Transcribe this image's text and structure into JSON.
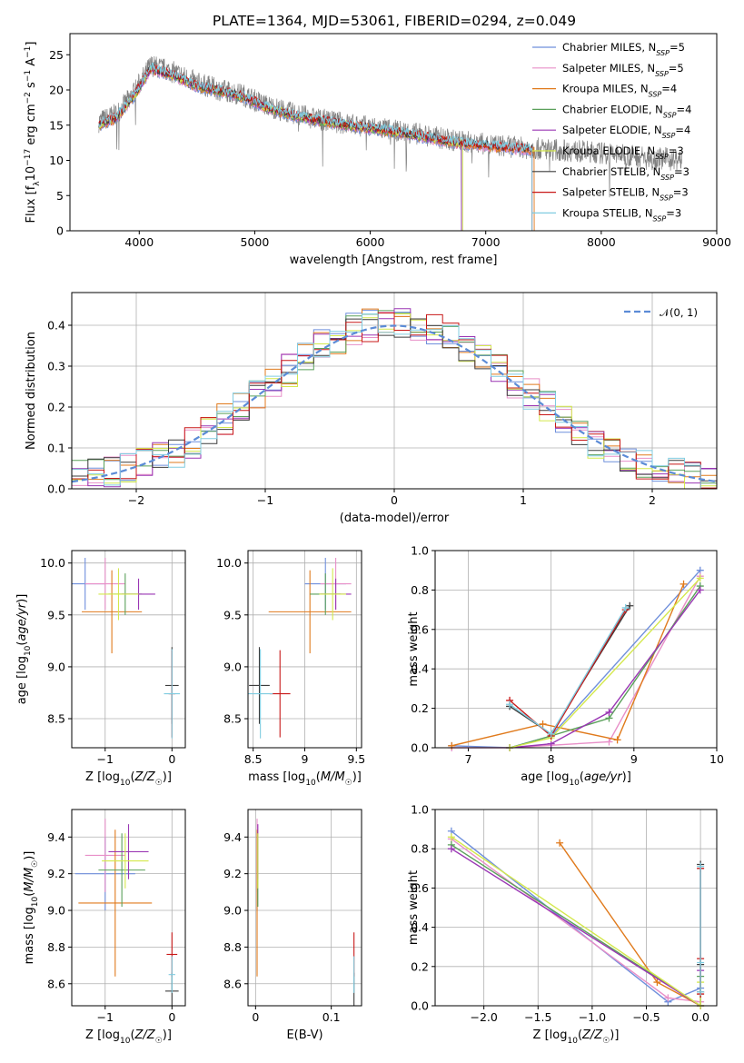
{
  "page_title": "PLATE=1364, MJD=53061, FIBERID=0294, z=0.049",
  "colors": {
    "chabrier_miles": "#6f8fdc",
    "salpeter_miles": "#e88fc8",
    "kroupa_miles": "#e07a1c",
    "chabrier_elodie": "#5aa05a",
    "salpeter_elodie": "#9a36b4",
    "kroupa_elodie": "#d4e84c",
    "chabrier_stelib": "#3c3c3c",
    "salpeter_stelib": "#c81818",
    "kroupa_stelib": "#80cce0",
    "data": "#808080",
    "gaussian": "#5b8bd6"
  },
  "legend_spectrum": [
    {
      "key": "chabrier_miles",
      "label": "Chabrier MILES, N",
      "sub": "SSP",
      "tail": "=5"
    },
    {
      "key": "salpeter_miles",
      "label": "Salpeter MILES, N",
      "sub": "SSP",
      "tail": "=5"
    },
    {
      "key": "kroupa_miles",
      "label": "Kroupa MILES, N",
      "sub": "SSP",
      "tail": "=4"
    },
    {
      "key": "chabrier_elodie",
      "label": "Chabrier ELODIE, N",
      "sub": "SSP",
      "tail": "=4"
    },
    {
      "key": "salpeter_elodie",
      "label": "Salpeter ELODIE, N",
      "sub": "SSP",
      "tail": "=4"
    },
    {
      "key": "kroupa_elodie",
      "label": "Kroupa ELODIE, N",
      "sub": "SSP",
      "tail": "=3"
    },
    {
      "key": "chabrier_stelib",
      "label": "Chabrier STELIB, N",
      "sub": "SSP",
      "tail": "=3"
    },
    {
      "key": "salpeter_stelib",
      "label": "Salpeter STELIB, N",
      "sub": "SSP",
      "tail": "=3"
    },
    {
      "key": "kroupa_stelib",
      "label": "Kroupa STELIB, N",
      "sub": "SSP",
      "tail": "=3"
    }
  ],
  "legend_hist": {
    "label": "𝒩(0, 1)"
  },
  "chart_data": [
    {
      "id": "spectrum",
      "type": "line",
      "xlabel": "wavelength [Angstrom, rest frame]",
      "ylabel": "Flux [f_λ10^-17 erg cm^-2 s^-1 A^-1]",
      "xlim": [
        3400,
        9000
      ],
      "ylim": [
        0,
        28
      ],
      "xticks": [
        4000,
        5000,
        6000,
        7000,
        8000,
        9000
      ],
      "yticks": [
        0,
        5,
        10,
        15,
        20,
        25
      ],
      "grid": false,
      "legend": "upper right",
      "data_series": {
        "x": [
          3650,
          3800,
          3950,
          4100,
          4300,
          4500,
          4700,
          4900,
          5100,
          5300,
          5500,
          5800,
          6100,
          6400,
          6700,
          7000,
          7300,
          7600,
          7900,
          8200,
          8500,
          8700
        ],
        "y": [
          15.5,
          16.5,
          19.5,
          23.5,
          22.5,
          21.0,
          20.0,
          19.3,
          17.8,
          16.8,
          16.0,
          15.2,
          14.5,
          13.8,
          12.9,
          12.3,
          11.8,
          11.5,
          11.2,
          10.7,
          10.3,
          10.0
        ]
      },
      "model_series": {
        "x": [
          3650,
          3800,
          3950,
          4100,
          4300,
          4500,
          4700,
          4900,
          5100,
          5300,
          5500,
          5800,
          6100,
          6400,
          6700,
          7000,
          7300,
          7400
        ],
        "y": [
          15.0,
          16.0,
          19.0,
          23.0,
          22.0,
          20.5,
          19.8,
          19.0,
          17.5,
          16.5,
          15.8,
          15.0,
          14.3,
          13.5,
          12.6,
          12.0,
          11.6,
          11.5
        ]
      },
      "model_end": {
        "chabrier_miles": 7400,
        "salpeter_miles": 7400,
        "kroupa_miles": 7420,
        "chabrier_elodie": 6790,
        "salpeter_elodie": 6790,
        "kroupa_elodie": 6800,
        "chabrier_stelib": 7400,
        "salpeter_stelib": 7400,
        "kroupa_stelib": 7400
      }
    },
    {
      "id": "residual_hist",
      "type": "histogram",
      "xlabel": "(data-model)/error",
      "ylabel": "Normed distribution",
      "xlim": [
        -2.5,
        2.5
      ],
      "ylim": [
        0,
        0.48
      ],
      "xticks": [
        -2,
        -1,
        0,
        1,
        2
      ],
      "yticks": [
        0.0,
        0.1,
        0.2,
        0.3,
        0.4
      ],
      "grid": true,
      "legend": "upper right",
      "bin_edges_range": [
        -2.5,
        2.5
      ],
      "n_bins": 40,
      "profile": [
        0.03,
        0.035,
        0.04,
        0.05,
        0.06,
        0.075,
        0.09,
        0.11,
        0.14,
        0.17,
        0.2,
        0.23,
        0.26,
        0.29,
        0.32,
        0.35,
        0.37,
        0.39,
        0.4,
        0.4,
        0.41,
        0.4,
        0.39,
        0.37,
        0.35,
        0.32,
        0.29,
        0.26,
        0.23,
        0.2,
        0.17,
        0.14,
        0.11,
        0.09,
        0.075,
        0.06,
        0.05,
        0.04,
        0.035,
        0.025
      ],
      "gaussian": {
        "mu": 0,
        "sigma": 1
      }
    },
    {
      "id": "age_vs_z",
      "type": "errorbar",
      "xlabel": "Z [log10(Z/Z☉)]",
      "ylabel": "age  [log10(age/yr)]",
      "xlim": [
        -1.5,
        0.2
      ],
      "ylim": [
        8.22,
        10.12
      ],
      "xticks": [
        -1,
        0
      ],
      "yticks": [
        8.5,
        9.0,
        9.5,
        10.0
      ],
      "grid": true,
      "points": [
        {
          "key": "chabrier_miles",
          "x": -1.3,
          "xerr": 0.3,
          "y": 9.8,
          "yerr": 0.25
        },
        {
          "key": "salpeter_miles",
          "x": -1.0,
          "xerr": 0.3,
          "y": 9.8,
          "yerr": 0.25
        },
        {
          "key": "kroupa_miles",
          "x": -0.9,
          "xerr": 0.45,
          "y": 9.53,
          "yerr": 0.4
        },
        {
          "key": "chabrier_elodie",
          "x": -0.7,
          "xerr": 0.25,
          "y": 9.7,
          "yerr": 0.2
        },
        {
          "key": "salpeter_elodie",
          "x": -0.5,
          "xerr": 0.25,
          "y": 9.7,
          "yerr": 0.15
        },
        {
          "key": "kroupa_elodie",
          "x": -0.8,
          "xerr": 0.3,
          "y": 9.7,
          "yerr": 0.25
        },
        {
          "key": "chabrier_stelib",
          "x": 0.0,
          "xerr": 0.1,
          "y": 8.82,
          "yerr": 0.37
        },
        {
          "key": "salpeter_stelib",
          "x": 0.0,
          "xerr": 0.05,
          "y": 8.74,
          "yerr": 0.42
        },
        {
          "key": "kroupa_stelib",
          "x": 0.0,
          "xerr": 0.12,
          "y": 8.74,
          "yerr": 0.43
        }
      ]
    },
    {
      "id": "age_vs_mass",
      "type": "errorbar",
      "xlabel": "mass [log10(M/M☉)]",
      "ylabel": "",
      "xlim": [
        8.45,
        9.55
      ],
      "ylim": [
        8.22,
        10.12
      ],
      "xticks": [
        8.5,
        9.0,
        9.5
      ],
      "yticks": [
        8.5,
        9.0,
        9.5,
        10.0
      ],
      "grid": true,
      "points": [
        {
          "key": "chabrier_miles",
          "x": 9.2,
          "xerr": 0.2,
          "y": 9.8,
          "yerr": 0.25
        },
        {
          "key": "salpeter_miles",
          "x": 9.3,
          "xerr": 0.15,
          "y": 9.8,
          "yerr": 0.25
        },
        {
          "key": "kroupa_miles",
          "x": 9.05,
          "xerr": 0.4,
          "y": 9.53,
          "yerr": 0.4
        },
        {
          "key": "chabrier_elodie",
          "x": 9.2,
          "xerr": 0.15,
          "y": 9.7,
          "yerr": 0.2
        },
        {
          "key": "salpeter_elodie",
          "x": 9.3,
          "xerr": 0.15,
          "y": 9.7,
          "yerr": 0.15
        },
        {
          "key": "kroupa_elodie",
          "x": 9.27,
          "xerr": 0.13,
          "y": 9.7,
          "yerr": 0.25
        },
        {
          "key": "chabrier_stelib",
          "x": 8.56,
          "xerr": 0.1,
          "y": 8.82,
          "yerr": 0.37
        },
        {
          "key": "salpeter_stelib",
          "x": 8.76,
          "xerr": 0.1,
          "y": 8.74,
          "yerr": 0.42
        },
        {
          "key": "kroupa_stelib",
          "x": 8.57,
          "xerr": 0.12,
          "y": 8.74,
          "yerr": 0.43
        }
      ]
    },
    {
      "id": "weight_vs_age",
      "type": "line",
      "xlabel": "age  [log10(age/yr)]",
      "ylabel": "mass weight",
      "xlim": [
        6.6,
        10.0
      ],
      "ylim": [
        0,
        1.0
      ],
      "xticks": [
        7,
        8,
        9,
        10
      ],
      "yticks": [
        0.0,
        0.2,
        0.4,
        0.6,
        0.8,
        1.0
      ],
      "grid": true,
      "series": [
        {
          "key": "chabrier_miles",
          "x": [
            6.8,
            7.5,
            8.0,
            9.8
          ],
          "y": [
            0.01,
            0.0,
            0.06,
            0.9
          ]
        },
        {
          "key": "salpeter_miles",
          "x": [
            6.8,
            7.5,
            8.7,
            9.8
          ],
          "y": [
            0.0,
            0.0,
            0.03,
            0.87
          ]
        },
        {
          "key": "kroupa_miles",
          "x": [
            6.8,
            7.9,
            8.8,
            9.6
          ],
          "y": [
            0.01,
            0.12,
            0.04,
            0.83
          ]
        },
        {
          "key": "chabrier_elodie",
          "x": [
            7.5,
            8.0,
            8.7,
            9.8
          ],
          "y": [
            0.0,
            0.06,
            0.15,
            0.82
          ]
        },
        {
          "key": "salpeter_elodie",
          "x": [
            7.5,
            8.0,
            8.7,
            9.8
          ],
          "y": [
            0.0,
            0.02,
            0.18,
            0.8
          ]
        },
        {
          "key": "kroupa_elodie",
          "x": [
            7.5,
            8.0,
            9.8
          ],
          "y": [
            0.0,
            0.05,
            0.86
          ]
        },
        {
          "key": "chabrier_stelib",
          "x": [
            7.5,
            8.0,
            8.95
          ],
          "y": [
            0.21,
            0.07,
            0.72
          ]
        },
        {
          "key": "salpeter_stelib",
          "x": [
            7.5,
            8.0,
            8.9
          ],
          "y": [
            0.24,
            0.06,
            0.7
          ]
        },
        {
          "key": "kroupa_stelib",
          "x": [
            7.5,
            8.0,
            8.9
          ],
          "y": [
            0.22,
            0.07,
            0.71
          ]
        }
      ]
    },
    {
      "id": "mass_vs_z",
      "type": "errorbar",
      "xlabel": "Z [log10(Z/Z☉)]",
      "ylabel": "mass [log10(M/M☉)]",
      "xlim": [
        -1.5,
        0.2
      ],
      "ylim": [
        8.48,
        9.55
      ],
      "xticks": [
        -1,
        0
      ],
      "yticks": [
        8.6,
        8.8,
        9.0,
        9.2,
        9.4
      ],
      "grid": true,
      "points": [
        {
          "key": "chabrier_miles",
          "x": -1.0,
          "xerr": 0.45,
          "y": 9.2,
          "yerr": 0.2
        },
        {
          "key": "salpeter_miles",
          "x": -1.0,
          "xerr": 0.3,
          "y": 9.3,
          "yerr": 0.2
        },
        {
          "key": "kroupa_miles",
          "x": -0.85,
          "xerr": 0.55,
          "y": 9.04,
          "yerr": 0.4
        },
        {
          "key": "chabrier_elodie",
          "x": -0.75,
          "xerr": 0.35,
          "y": 9.22,
          "yerr": 0.2
        },
        {
          "key": "salpeter_elodie",
          "x": -0.65,
          "xerr": 0.3,
          "y": 9.32,
          "yerr": 0.15
        },
        {
          "key": "kroupa_elodie",
          "x": -0.7,
          "xerr": 0.35,
          "y": 9.27,
          "yerr": 0.15
        },
        {
          "key": "chabrier_stelib",
          "x": 0.0,
          "xerr": 0.1,
          "y": 8.56,
          "yerr": 0.1
        },
        {
          "key": "salpeter_stelib",
          "x": 0.0,
          "xerr": 0.08,
          "y": 8.76,
          "yerr": 0.12
        },
        {
          "key": "kroupa_stelib",
          "x": 0.0,
          "xerr": 0.05,
          "y": 8.65,
          "yerr": 0.1
        }
      ]
    },
    {
      "id": "mass_vs_ebv",
      "type": "errorbar",
      "xlabel": "E(B-V)",
      "ylabel": "",
      "xlim": [
        -0.01,
        0.14
      ],
      "ylim": [
        8.48,
        9.55
      ],
      "xticks": [
        0.0,
        0.1
      ],
      "yticks": [
        8.6,
        8.8,
        9.0,
        9.2,
        9.4
      ],
      "grid": true,
      "points": [
        {
          "key": "chabrier_miles",
          "x": 0.002,
          "xerr": 0.0,
          "y": 9.2,
          "yerr": 0.2
        },
        {
          "key": "salpeter_miles",
          "x": 0.002,
          "xerr": 0.0,
          "y": 9.3,
          "yerr": 0.2
        },
        {
          "key": "kroupa_miles",
          "x": 0.002,
          "xerr": 0.0,
          "y": 9.04,
          "yerr": 0.4
        },
        {
          "key": "chabrier_elodie",
          "x": 0.003,
          "xerr": 0.0,
          "y": 9.22,
          "yerr": 0.2
        },
        {
          "key": "salpeter_elodie",
          "x": 0.003,
          "xerr": 0.0,
          "y": 9.32,
          "yerr": 0.15
        },
        {
          "key": "kroupa_elodie",
          "x": 0.003,
          "xerr": 0.0,
          "y": 9.27,
          "yerr": 0.15
        },
        {
          "key": "chabrier_stelib",
          "x": 0.13,
          "xerr": 0.0,
          "y": 8.56,
          "yerr": 0.1
        },
        {
          "key": "salpeter_stelib",
          "x": 0.13,
          "xerr": 0.0,
          "y": 8.76,
          "yerr": 0.12
        },
        {
          "key": "kroupa_stelib",
          "x": 0.13,
          "xerr": 0.0,
          "y": 8.65,
          "yerr": 0.1
        }
      ]
    },
    {
      "id": "weight_vs_z",
      "type": "line",
      "xlabel": "Z [log10(Z/Z☉)]",
      "ylabel": "mass weight",
      "xlim": [
        -2.45,
        0.15
      ],
      "ylim": [
        0,
        1.0
      ],
      "xticks": [
        -2.0,
        -1.5,
        -1.0,
        -0.5,
        0.0
      ],
      "yticks": [
        0.0,
        0.2,
        0.4,
        0.6,
        0.8,
        1.0
      ],
      "grid": true,
      "series": [
        {
          "key": "chabrier_miles",
          "x": [
            -2.3,
            -0.3,
            0.0
          ],
          "y": [
            0.89,
            0.02,
            0.09
          ]
        },
        {
          "key": "salpeter_miles",
          "x": [
            -2.3,
            -0.3,
            0.0
          ],
          "y": [
            0.85,
            0.04,
            0.02
          ]
        },
        {
          "key": "kroupa_miles",
          "x": [
            -1.3,
            -0.4,
            0.0
          ],
          "y": [
            0.83,
            0.12,
            0.0
          ]
        },
        {
          "key": "chabrier_elodie",
          "x": [
            -2.3,
            0.0,
            0.0
          ],
          "y": [
            0.82,
            0.0,
            0.15
          ]
        },
        {
          "key": "salpeter_elodie",
          "x": [
            -2.3,
            0.0,
            0.0
          ],
          "y": [
            0.8,
            0.0,
            0.18
          ]
        },
        {
          "key": "kroupa_elodie",
          "x": [
            -2.3,
            0.0,
            0.0
          ],
          "y": [
            0.86,
            0.0,
            0.12
          ]
        },
        {
          "key": "chabrier_stelib",
          "x": [
            0.0,
            0.0,
            0.0
          ],
          "y": [
            0.72,
            0.21,
            0.07
          ]
        },
        {
          "key": "salpeter_stelib",
          "x": [
            0.0,
            0.0,
            0.0
          ],
          "y": [
            0.7,
            0.24,
            0.06
          ]
        },
        {
          "key": "kroupa_stelib",
          "x": [
            0.0,
            0.0,
            0.0
          ],
          "y": [
            0.71,
            0.22,
            0.07
          ]
        }
      ]
    }
  ]
}
